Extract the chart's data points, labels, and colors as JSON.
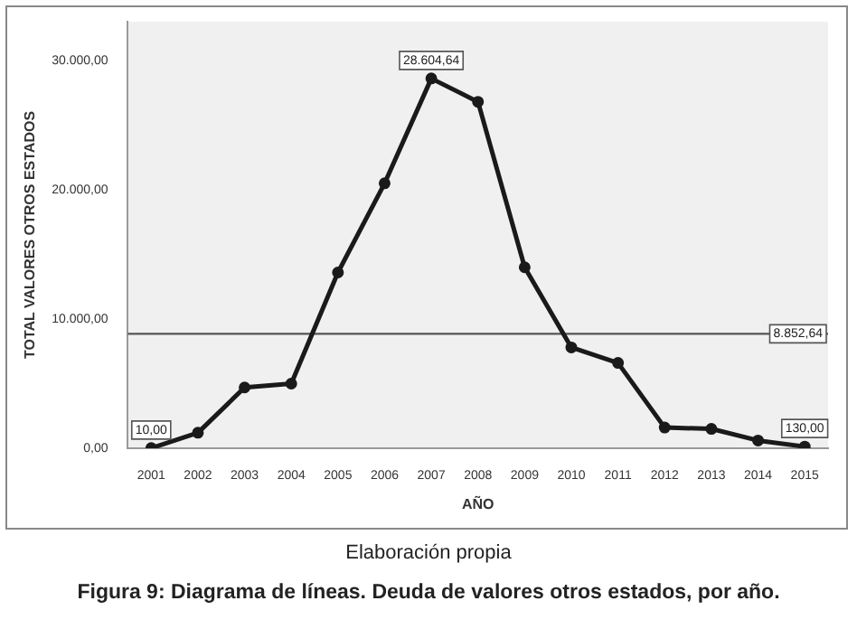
{
  "chart_data": {
    "type": "line",
    "title": "Figura 9: Diagrama de líneas. Deuda de valores otros estados, por año.",
    "xlabel": "AÑO",
    "ylabel": "TOTAL VALORES OTROS ESTADOS",
    "categories": [
      "2001",
      "2002",
      "2003",
      "2004",
      "2005",
      "2006",
      "2007",
      "2008",
      "2009",
      "2010",
      "2011",
      "2012",
      "2013",
      "2014",
      "2015"
    ],
    "series": [
      {
        "color": "#1a1a1a",
        "values": [
          10,
          1200,
          4700,
          5000,
          13600,
          20500,
          28604.64,
          26800,
          14000,
          7800,
          6600,
          1600,
          1500,
          600,
          130
        ],
        "value_labels": [
          "10,00",
          null,
          null,
          null,
          null,
          null,
          "28.604,64",
          null,
          null,
          null,
          null,
          null,
          null,
          null,
          "130,00"
        ]
      }
    ],
    "ylim": [
      0,
      33000
    ],
    "yticks": [
      {
        "value": 0,
        "label": "0,00"
      },
      {
        "value": 10000,
        "label": "10.000,00"
      },
      {
        "value": 20000,
        "label": "20.000,00"
      },
      {
        "value": 30000,
        "label": "30.000,00"
      }
    ],
    "ref_lines": [
      {
        "axis": "y",
        "value": 8852.64,
        "label": "8.852,64",
        "color": "#555555"
      }
    ],
    "annotations": [
      "Elaboración propia"
    ],
    "marker": "circle",
    "grid": false,
    "legend": false
  }
}
